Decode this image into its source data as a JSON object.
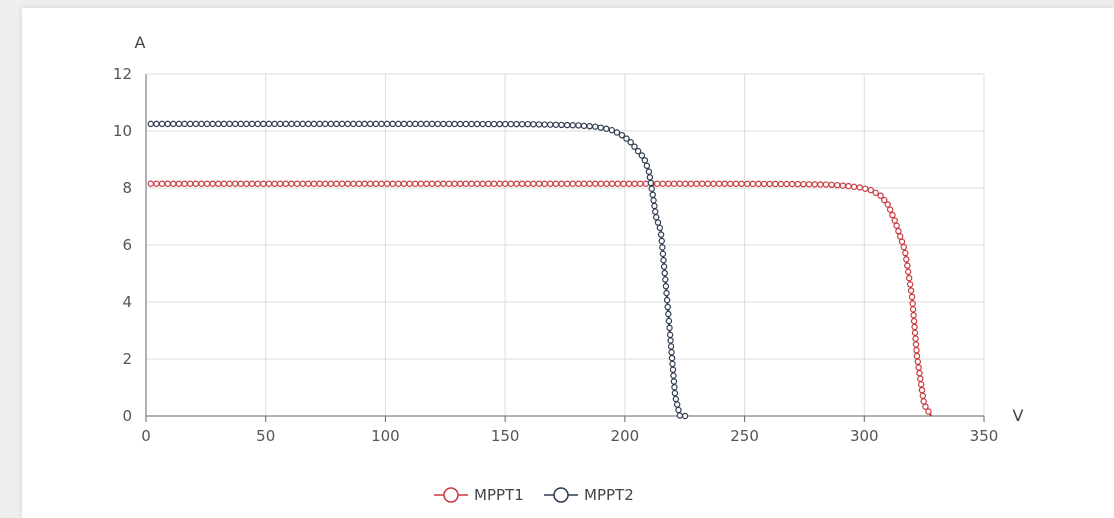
{
  "chart_data": {
    "type": "line",
    "xlabel": "V",
    "ylabel": "A",
    "xlim": [
      0,
      350
    ],
    "ylim": [
      0,
      12
    ],
    "x_ticks": [
      0,
      50,
      100,
      150,
      200,
      250,
      300,
      350
    ],
    "y_ticks": [
      0,
      2,
      4,
      6,
      8,
      10,
      12
    ],
    "grid": true,
    "legend": "bottom-center",
    "series": [
      {
        "name": "MPPT1",
        "color": "#c8383e",
        "points": [
          [
            2,
            8.15
          ],
          [
            60,
            8.15
          ],
          [
            120,
            8.15
          ],
          [
            180,
            8.15
          ],
          [
            240,
            8.15
          ],
          [
            270,
            8.14
          ],
          [
            285,
            8.12
          ],
          [
            292,
            8.08
          ],
          [
            298,
            8.02
          ],
          [
            303,
            7.92
          ],
          [
            307,
            7.72
          ],
          [
            310,
            7.4
          ],
          [
            313,
            6.8
          ],
          [
            317,
            5.8
          ],
          [
            320,
            4.15
          ],
          [
            322,
            2.1
          ],
          [
            325,
            0.4
          ],
          [
            328,
            0.0
          ]
        ]
      },
      {
        "name": "MPPT2",
        "color": "#2e3b4e",
        "points": [
          [
            2,
            10.25
          ],
          [
            60,
            10.25
          ],
          [
            120,
            10.25
          ],
          [
            160,
            10.24
          ],
          [
            180,
            10.2
          ],
          [
            188,
            10.15
          ],
          [
            194,
            10.05
          ],
          [
            198,
            9.9
          ],
          [
            202,
            9.65
          ],
          [
            205,
            9.35
          ],
          [
            208,
            9.05
          ],
          [
            210,
            8.6
          ],
          [
            211.5,
            7.85
          ],
          [
            213,
            7.0
          ],
          [
            215,
            6.5
          ],
          [
            217,
            4.7
          ],
          [
            219,
            2.75
          ],
          [
            221,
            0.7
          ],
          [
            223,
            0.0
          ],
          [
            226,
            0.0
          ]
        ]
      }
    ]
  }
}
